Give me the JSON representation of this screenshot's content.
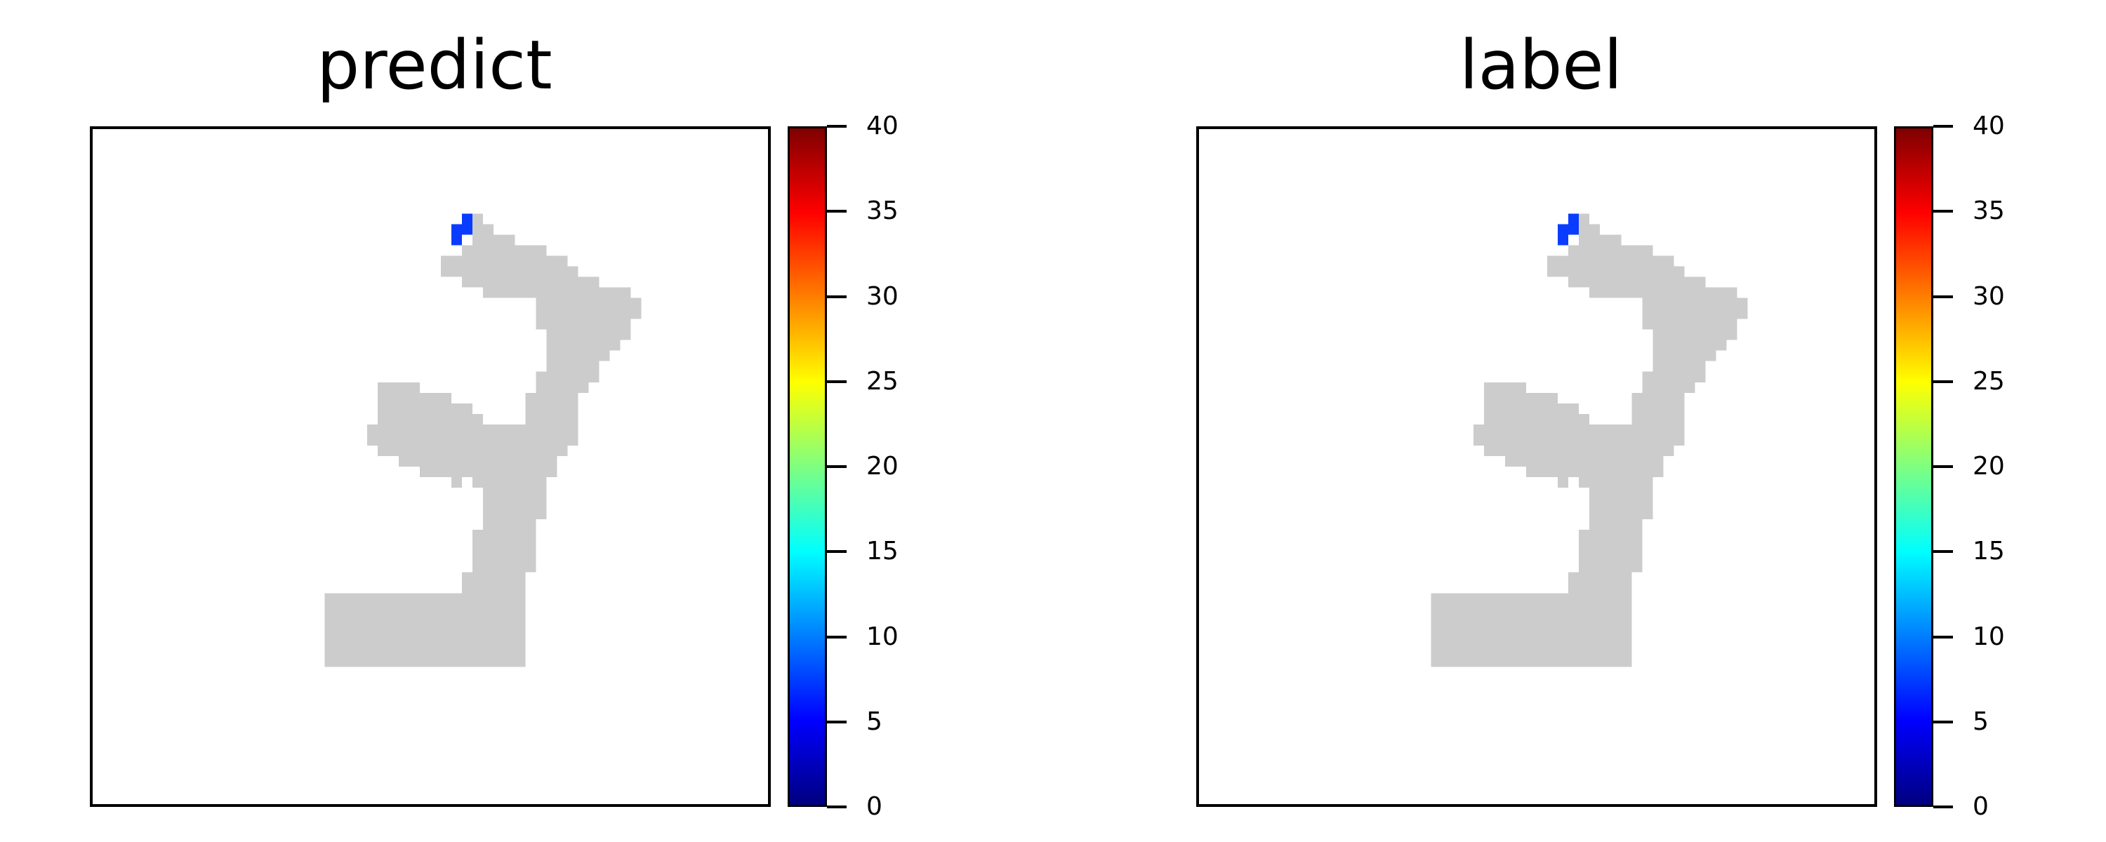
{
  "colors": {
    "mask": "#cccccc",
    "marker": "#0a3cff",
    "frame": "#000000",
    "background": "#ffffff"
  },
  "chart_data": [
    {
      "type": "heatmap",
      "title": "predict",
      "colormap": "jet",
      "colorbar": {
        "min": 0,
        "max": 40,
        "ticks": [
          "0",
          "5",
          "10",
          "15",
          "20",
          "25",
          "30",
          "35",
          "40"
        ]
      },
      "grid_size": [
        64,
        64
      ],
      "background_cells": {
        "value": "gray",
        "rows": [
          {
            "row": 8,
            "spans": [
              [
                36,
                37
              ]
            ]
          },
          {
            "row": 9,
            "spans": [
              [
                36,
                38
              ]
            ]
          },
          {
            "row": 10,
            "spans": [
              [
                36,
                40
              ]
            ]
          },
          {
            "row": 11,
            "spans": [
              [
                35,
                43
              ]
            ]
          },
          {
            "row": 12,
            "spans": [
              [
                33,
                45
              ]
            ]
          },
          {
            "row": 13,
            "spans": [
              [
                33,
                46
              ]
            ]
          },
          {
            "row": 14,
            "spans": [
              [
                35,
                48
              ]
            ]
          },
          {
            "row": 15,
            "spans": [
              [
                37,
                51
              ]
            ]
          },
          {
            "row": 16,
            "spans": [
              [
                42,
                52
              ]
            ]
          },
          {
            "row": 17,
            "spans": [
              [
                42,
                52
              ]
            ]
          },
          {
            "row": 18,
            "spans": [
              [
                42,
                51
              ]
            ]
          },
          {
            "row": 19,
            "spans": [
              [
                43,
                51
              ]
            ]
          },
          {
            "row": 20,
            "spans": [
              [
                43,
                50
              ]
            ]
          },
          {
            "row": 21,
            "spans": [
              [
                43,
                49
              ]
            ]
          },
          {
            "row": 22,
            "spans": [
              [
                43,
                48
              ]
            ]
          },
          {
            "row": 23,
            "spans": [
              [
                42,
                48
              ]
            ]
          },
          {
            "row": 24,
            "spans": [
              [
                27,
                31
              ],
              [
                42,
                47
              ]
            ]
          },
          {
            "row": 25,
            "spans": [
              [
                27,
                34
              ],
              [
                41,
                46
              ]
            ]
          },
          {
            "row": 26,
            "spans": [
              [
                27,
                36
              ],
              [
                41,
                46
              ]
            ]
          },
          {
            "row": 27,
            "spans": [
              [
                27,
                37
              ],
              [
                41,
                46
              ]
            ]
          },
          {
            "row": 28,
            "spans": [
              [
                26,
                46
              ]
            ]
          },
          {
            "row": 29,
            "spans": [
              [
                26,
                46
              ]
            ]
          },
          {
            "row": 30,
            "spans": [
              [
                27,
                45
              ]
            ]
          },
          {
            "row": 31,
            "spans": [
              [
                29,
                44
              ]
            ]
          },
          {
            "row": 32,
            "spans": [
              [
                31,
                44
              ]
            ]
          },
          {
            "row": 33,
            "spans": [
              [
                34,
                35
              ],
              [
                36,
                43
              ]
            ]
          },
          {
            "row": 34,
            "spans": [
              [
                37,
                43
              ]
            ]
          },
          {
            "row": 35,
            "spans": [
              [
                37,
                43
              ]
            ]
          },
          {
            "row": 36,
            "spans": [
              [
                37,
                43
              ]
            ]
          },
          {
            "row": 37,
            "spans": [
              [
                37,
                42
              ]
            ]
          },
          {
            "row": 38,
            "spans": [
              [
                36,
                42
              ]
            ]
          },
          {
            "row": 39,
            "spans": [
              [
                36,
                42
              ]
            ]
          },
          {
            "row": 40,
            "spans": [
              [
                36,
                42
              ]
            ]
          },
          {
            "row": 41,
            "spans": [
              [
                36,
                42
              ]
            ]
          },
          {
            "row": 42,
            "spans": [
              [
                35,
                41
              ]
            ]
          },
          {
            "row": 43,
            "spans": [
              [
                35,
                41
              ]
            ]
          },
          {
            "row": 44,
            "spans": [
              [
                22,
                41
              ]
            ]
          },
          {
            "row": 45,
            "spans": [
              [
                22,
                41
              ]
            ]
          },
          {
            "row": 46,
            "spans": [
              [
                22,
                41
              ]
            ]
          },
          {
            "row": 47,
            "spans": [
              [
                22,
                41
              ]
            ]
          },
          {
            "row": 48,
            "spans": [
              [
                22,
                41
              ]
            ]
          },
          {
            "row": 49,
            "spans": [
              [
                22,
                41
              ]
            ]
          },
          {
            "row": 50,
            "spans": [
              [
                22,
                41
              ]
            ]
          }
        ]
      },
      "value_cells": [
        {
          "row": 8,
          "col": 35,
          "value": 7
        },
        {
          "row": 9,
          "col": 34,
          "value": 7
        },
        {
          "row": 9,
          "col": 35,
          "value": 7
        },
        {
          "row": 10,
          "col": 34,
          "value": 7
        }
      ]
    },
    {
      "type": "heatmap",
      "title": "label",
      "colormap": "jet",
      "colorbar": {
        "min": 0,
        "max": 40,
        "ticks": [
          "0",
          "5",
          "10",
          "15",
          "20",
          "25",
          "30",
          "35",
          "40"
        ]
      },
      "grid_size": [
        64,
        64
      ],
      "background_cells": {
        "value": "gray",
        "rows": [
          {
            "row": 8,
            "spans": [
              [
                36,
                37
              ]
            ]
          },
          {
            "row": 9,
            "spans": [
              [
                36,
                38
              ]
            ]
          },
          {
            "row": 10,
            "spans": [
              [
                36,
                40
              ]
            ]
          },
          {
            "row": 11,
            "spans": [
              [
                35,
                43
              ]
            ]
          },
          {
            "row": 12,
            "spans": [
              [
                33,
                45
              ]
            ]
          },
          {
            "row": 13,
            "spans": [
              [
                33,
                46
              ]
            ]
          },
          {
            "row": 14,
            "spans": [
              [
                35,
                48
              ]
            ]
          },
          {
            "row": 15,
            "spans": [
              [
                37,
                51
              ]
            ]
          },
          {
            "row": 16,
            "spans": [
              [
                42,
                52
              ]
            ]
          },
          {
            "row": 17,
            "spans": [
              [
                42,
                52
              ]
            ]
          },
          {
            "row": 18,
            "spans": [
              [
                42,
                51
              ]
            ]
          },
          {
            "row": 19,
            "spans": [
              [
                43,
                51
              ]
            ]
          },
          {
            "row": 20,
            "spans": [
              [
                43,
                50
              ]
            ]
          },
          {
            "row": 21,
            "spans": [
              [
                43,
                49
              ]
            ]
          },
          {
            "row": 22,
            "spans": [
              [
                43,
                48
              ]
            ]
          },
          {
            "row": 23,
            "spans": [
              [
                42,
                48
              ]
            ]
          },
          {
            "row": 24,
            "spans": [
              [
                27,
                31
              ],
              [
                42,
                47
              ]
            ]
          },
          {
            "row": 25,
            "spans": [
              [
                27,
                34
              ],
              [
                41,
                46
              ]
            ]
          },
          {
            "row": 26,
            "spans": [
              [
                27,
                36
              ],
              [
                41,
                46
              ]
            ]
          },
          {
            "row": 27,
            "spans": [
              [
                27,
                37
              ],
              [
                41,
                46
              ]
            ]
          },
          {
            "row": 28,
            "spans": [
              [
                26,
                46
              ]
            ]
          },
          {
            "row": 29,
            "spans": [
              [
                26,
                46
              ]
            ]
          },
          {
            "row": 30,
            "spans": [
              [
                27,
                45
              ]
            ]
          },
          {
            "row": 31,
            "spans": [
              [
                29,
                44
              ]
            ]
          },
          {
            "row": 32,
            "spans": [
              [
                31,
                44
              ]
            ]
          },
          {
            "row": 33,
            "spans": [
              [
                34,
                35
              ],
              [
                36,
                43
              ]
            ]
          },
          {
            "row": 34,
            "spans": [
              [
                37,
                43
              ]
            ]
          },
          {
            "row": 35,
            "spans": [
              [
                37,
                43
              ]
            ]
          },
          {
            "row": 36,
            "spans": [
              [
                37,
                43
              ]
            ]
          },
          {
            "row": 37,
            "spans": [
              [
                37,
                42
              ]
            ]
          },
          {
            "row": 38,
            "spans": [
              [
                36,
                42
              ]
            ]
          },
          {
            "row": 39,
            "spans": [
              [
                36,
                42
              ]
            ]
          },
          {
            "row": 40,
            "spans": [
              [
                36,
                42
              ]
            ]
          },
          {
            "row": 41,
            "spans": [
              [
                36,
                42
              ]
            ]
          },
          {
            "row": 42,
            "spans": [
              [
                35,
                41
              ]
            ]
          },
          {
            "row": 43,
            "spans": [
              [
                35,
                41
              ]
            ]
          },
          {
            "row": 44,
            "spans": [
              [
                22,
                41
              ]
            ]
          },
          {
            "row": 45,
            "spans": [
              [
                22,
                41
              ]
            ]
          },
          {
            "row": 46,
            "spans": [
              [
                22,
                41
              ]
            ]
          },
          {
            "row": 47,
            "spans": [
              [
                22,
                41
              ]
            ]
          },
          {
            "row": 48,
            "spans": [
              [
                22,
                41
              ]
            ]
          },
          {
            "row": 49,
            "spans": [
              [
                22,
                41
              ]
            ]
          },
          {
            "row": 50,
            "spans": [
              [
                22,
                41
              ]
            ]
          }
        ]
      },
      "value_cells": [
        {
          "row": 8,
          "col": 35,
          "value": 7
        },
        {
          "row": 9,
          "col": 34,
          "value": 7
        },
        {
          "row": 9,
          "col": 35,
          "value": 7
        },
        {
          "row": 10,
          "col": 34,
          "value": 7
        }
      ]
    }
  ]
}
